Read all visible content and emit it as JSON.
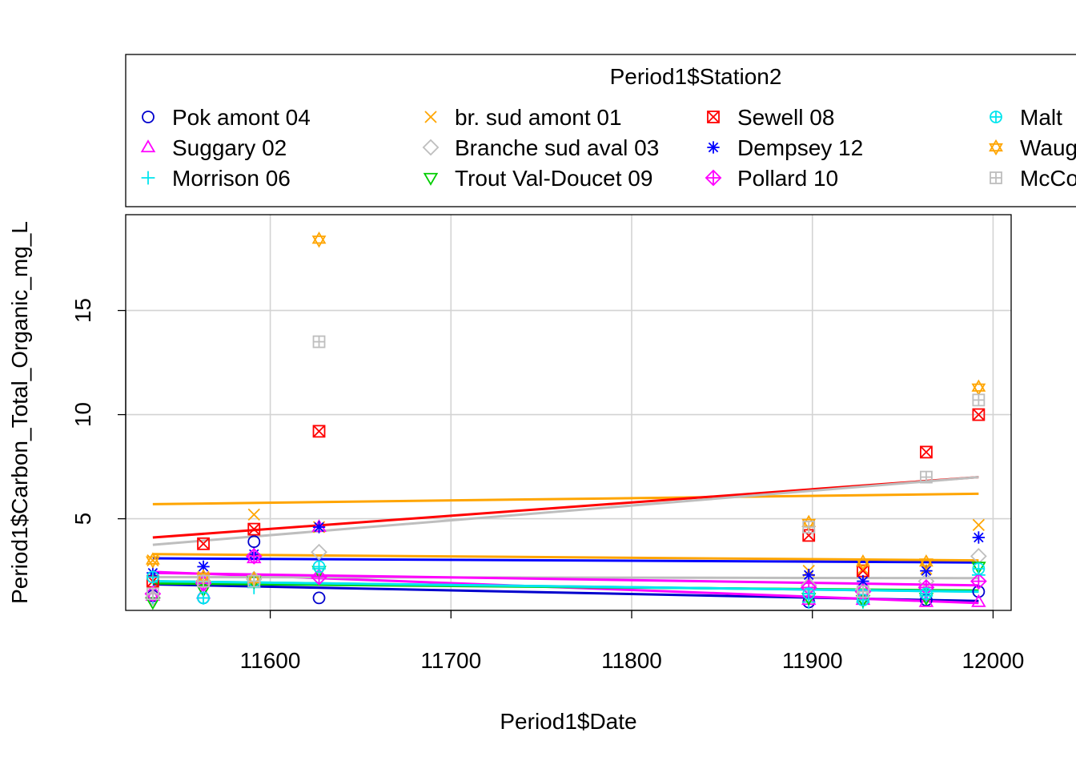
{
  "chart_data": {
    "type": "scatter",
    "title": "",
    "xlabel": "Period1$Date",
    "ylabel": "Period1$Carbon_Total_Organic_mg_L",
    "xlim": [
      11520,
      12010
    ],
    "ylim": [
      0.6,
      19.6
    ],
    "xticks": [
      "11600",
      "11700",
      "11800",
      "11900",
      "12000"
    ],
    "yticks": [
      "5",
      "10",
      "15"
    ],
    "grid": true,
    "legend": {
      "title": "Period1$Station2",
      "placement": "top",
      "entries": [
        {
          "name": "Pok amont 04",
          "color": "#0000CD",
          "symbol": "circle"
        },
        {
          "name": "Suggary 02",
          "color": "#FF00FF",
          "symbol": "triangle"
        },
        {
          "name": "Morrison 06",
          "color": "#00E5EE",
          "symbol": "plus"
        },
        {
          "name": "br. sud amont 01",
          "color": "#FFA500",
          "symbol": "cross"
        },
        {
          "name": "Branche sud aval 03",
          "color": "#BEBEBE",
          "symbol": "diamond"
        },
        {
          "name": "Trout Val-Doucet 09",
          "color": "#00CD00",
          "symbol": "triangle-down"
        },
        {
          "name": "Sewell 08",
          "color": "#FF0000",
          "symbol": "square-x"
        },
        {
          "name": "Dempsey 12",
          "color": "#0000FF",
          "symbol": "asterisk"
        },
        {
          "name": "Pollard 10",
          "color": "#FF00FF",
          "symbol": "diamond-plus"
        },
        {
          "name": "Malt",
          "color": "#00E5EE",
          "symbol": "circle-plus"
        },
        {
          "name": "Waug",
          "color": "#FFA500",
          "symbol": "star-of-david"
        },
        {
          "name": "McCo",
          "color": "#BEBEBE",
          "symbol": "square-plus"
        }
      ]
    },
    "x": [
      11535,
      11563,
      11591,
      11627,
      11898,
      11928,
      11963,
      11992
    ],
    "series": [
      {
        "name": "Pok amont 04",
        "y": [
          1.3,
          1.2,
          3.9,
          1.2,
          1.0,
          1.1,
          1.1,
          1.5
        ],
        "fit": [
          1.85,
          1.05
        ]
      },
      {
        "name": "Suggary 02",
        "y": [
          1.3,
          1.4,
          3.1,
          4.6,
          1.1,
          1.1,
          1.0,
          1.0
        ],
        "fit": [
          2.45,
          0.95
        ]
      },
      {
        "name": "Morrison 06",
        "y": [
          1.2,
          1.2,
          1.7,
          2.6,
          1.0,
          1.0,
          1.3,
          2.3
        ],
        "fit": [
          2.0,
          1.5
        ]
      },
      {
        "name": "br. sud amont 01",
        "y": [
          3.0,
          2.2,
          5.2,
          4.6,
          2.5,
          2.6,
          2.6,
          4.7
        ],
        "fit": [
          5.7,
          6.2
        ]
      },
      {
        "name": "Branche sud aval 03",
        "y": [
          1.2,
          2.0,
          2.1,
          3.4,
          1.8,
          1.6,
          2.0,
          3.2
        ],
        "fit": [
          2.2,
          2.15
        ]
      },
      {
        "name": "Trout Val-Doucet 09",
        "y": [
          1.0,
          1.6,
          2.0,
          2.5,
          1.2,
          1.1,
          1.2,
          2.7
        ],
        "fit": [
          1.9,
          1.55
        ]
      },
      {
        "name": "Sewell 08",
        "y": [
          2.0,
          3.8,
          4.5,
          9.2,
          4.2,
          2.5,
          8.2,
          10.0
        ],
        "fit": [
          4.1,
          7.0
        ]
      },
      {
        "name": "Dempsey 12",
        "y": [
          2.4,
          2.7,
          3.3,
          4.6,
          2.3,
          2.0,
          2.5,
          4.1
        ],
        "fit": [
          3.1,
          2.9
        ]
      },
      {
        "name": "Pollard 10",
        "y": [
          1.4,
          1.9,
          3.2,
          2.2,
          1.7,
          1.5,
          1.7,
          2.0
        ],
        "fit": [
          2.4,
          1.8
        ]
      },
      {
        "name": "Malt",
        "y": [
          2.2,
          1.2,
          2.0,
          2.7,
          1.4,
          1.1,
          1.4,
          2.6
        ],
        "fit": [
          2.0,
          1.5
        ]
      },
      {
        "name": "Waug",
        "y": [
          3.0,
          2.2,
          2.1,
          18.4,
          4.8,
          2.9,
          2.9,
          11.3
        ],
        "fit": [
          3.3,
          3.0
        ]
      },
      {
        "name": "McCo",
        "y": [
          1.4,
          2.0,
          2.0,
          13.5,
          4.6,
          1.5,
          7.0,
          10.7
        ],
        "fit": [
          3.75,
          7.0
        ]
      }
    ]
  }
}
